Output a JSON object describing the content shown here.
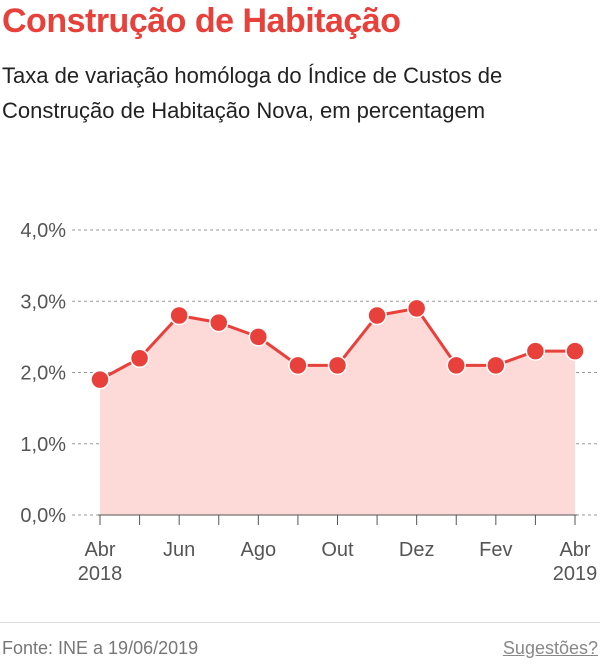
{
  "header": {
    "title": "Construção de Habitação",
    "subtitle": "Taxa de variação homóloga do Índice de Custos de Construção de Habitação Nova, em percentagem"
  },
  "chart_data": {
    "type": "line",
    "area": true,
    "color": "#e8403a",
    "area_color": "#fdd9d7",
    "grid": true,
    "categories": [
      "Abr",
      null,
      "Jun",
      null,
      "Ago",
      null,
      "Out",
      null,
      "Dez",
      null,
      "Fev",
      null,
      "Abr"
    ],
    "category_years": [
      "2018",
      null,
      null,
      null,
      null,
      null,
      null,
      null,
      null,
      null,
      null,
      null,
      "2019"
    ],
    "values": [
      1.9,
      2.2,
      2.8,
      2.7,
      2.5,
      2.1,
      2.1,
      2.8,
      2.9,
      2.1,
      2.1,
      2.3,
      2.3
    ],
    "ylim": [
      0,
      4
    ],
    "yticks": [
      {
        "value": 0,
        "label": "0,0%"
      },
      {
        "value": 1,
        "label": "1,0%"
      },
      {
        "value": 2,
        "label": "2,0%"
      },
      {
        "value": 3,
        "label": "3,0%"
      },
      {
        "value": 4,
        "label": "4,0%"
      }
    ]
  },
  "footer": {
    "source": "Fonte: INE a 19/06/2019",
    "link": "Sugestões?"
  }
}
